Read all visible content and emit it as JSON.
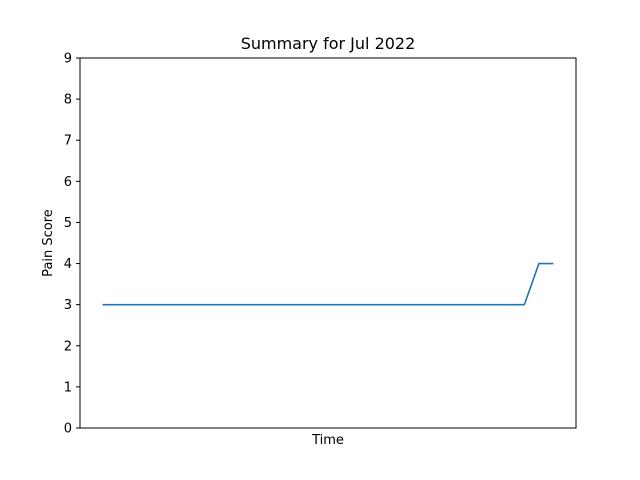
{
  "chart_data": {
    "type": "line",
    "title": "Summary for Jul 2022",
    "xlabel": "Time",
    "ylabel": "Pain Score",
    "ylim": [
      0,
      9
    ],
    "yticks": [
      "0",
      "1",
      "2",
      "3",
      "4",
      "5",
      "6",
      "7",
      "8",
      "9"
    ],
    "x": [
      0,
      29,
      30,
      31
    ],
    "series": [
      {
        "values": [
          3,
          3,
          4,
          4
        ],
        "color": "#1f77b4"
      }
    ],
    "grid": false,
    "legend": "none"
  }
}
